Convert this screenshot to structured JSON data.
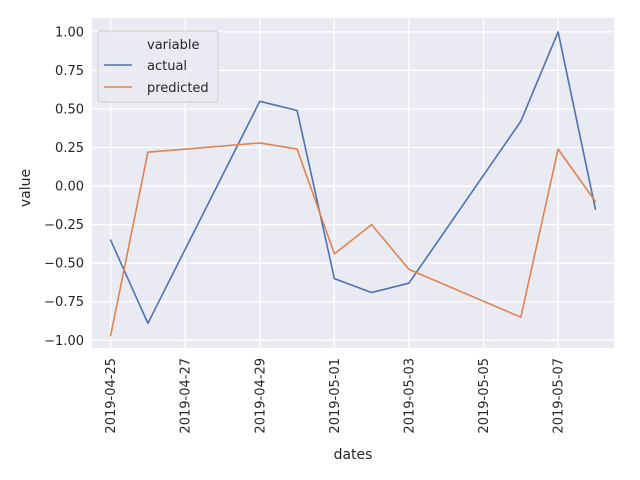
{
  "chart_data": {
    "type": "line",
    "xlabel": "dates",
    "ylabel": "value",
    "x_ticks": [
      "2019-04-25",
      "2019-04-27",
      "2019-04-29",
      "2019-05-01",
      "2019-05-03",
      "2019-05-05",
      "2019-05-07"
    ],
    "y_ticks": [
      "−1.00",
      "−0.75",
      "−0.50",
      "−0.25",
      "0.00",
      "0.25",
      "0.50",
      "0.75",
      "1.00"
    ],
    "xlim": [
      "2019-04-24T12:00",
      "2019-05-08T12:00"
    ],
    "ylim": [
      -1.05,
      1.09
    ],
    "grid": true,
    "legend": {
      "title": "variable",
      "position": "top-left"
    },
    "series": [
      {
        "name": "actual",
        "color": "#4c72b0",
        "points": [
          [
            "2019-04-25",
            -0.35
          ],
          [
            "2019-04-26",
            -0.89
          ],
          [
            "2019-04-29",
            0.55
          ],
          [
            "2019-04-30",
            0.49
          ],
          [
            "2019-05-01",
            -0.6
          ],
          [
            "2019-05-02",
            -0.69
          ],
          [
            "2019-05-03",
            -0.63
          ],
          [
            "2019-05-06",
            0.42
          ],
          [
            "2019-05-07",
            1.0
          ],
          [
            "2019-05-08",
            -0.15
          ]
        ]
      },
      {
        "name": "predicted",
        "color": "#dd8452",
        "points": [
          [
            "2019-04-25",
            -0.97
          ],
          [
            "2019-04-26",
            0.22
          ],
          [
            "2019-04-29",
            0.28
          ],
          [
            "2019-04-30",
            0.24
          ],
          [
            "2019-05-01",
            -0.44
          ],
          [
            "2019-05-02",
            -0.25
          ],
          [
            "2019-05-03",
            -0.54
          ],
          [
            "2019-05-06",
            -0.85
          ],
          [
            "2019-05-07",
            0.24
          ],
          [
            "2019-05-08",
            -0.1
          ]
        ]
      }
    ]
  }
}
